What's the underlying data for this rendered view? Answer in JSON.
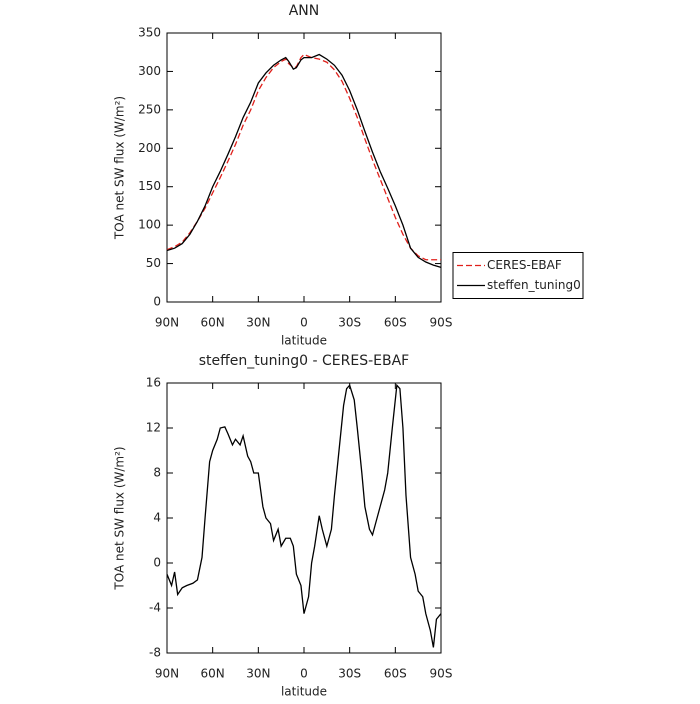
{
  "chart_data": [
    {
      "type": "line",
      "title": "ANN",
      "xlabel": "latitude",
      "ylabel": "TOA net SW flux (W/m²)",
      "x": [
        90,
        85,
        80,
        75,
        70,
        65,
        60,
        55,
        50,
        45,
        40,
        35,
        30,
        25,
        20,
        15,
        12,
        10,
        7,
        5,
        2,
        0,
        -5,
        -10,
        -15,
        -20,
        -25,
        -30,
        -35,
        -40,
        -45,
        -50,
        -55,
        -60,
        -65,
        -70,
        -75,
        -80,
        -85,
        -90
      ],
      "series": [
        {
          "name": "CERES-EBAF",
          "color": "#e0201b",
          "dashed": true,
          "values": [
            68,
            72,
            78,
            90,
            105,
            122,
            142,
            162,
            183,
            205,
            230,
            250,
            275,
            292,
            305,
            313,
            316,
            310,
            305,
            306,
            318,
            322,
            318,
            316,
            312,
            302,
            287,
            265,
            240,
            212,
            185,
            160,
            135,
            110,
            88,
            70,
            60,
            55,
            55,
            55
          ]
        },
        {
          "name": "steffen_tuning0",
          "color": "#000000",
          "dashed": false,
          "values": [
            67,
            70,
            76,
            88,
            105,
            125,
            150,
            170,
            192,
            215,
            240,
            260,
            285,
            298,
            308,
            315,
            318,
            313,
            303,
            305,
            315,
            318,
            318,
            322,
            316,
            308,
            295,
            275,
            250,
            222,
            195,
            170,
            148,
            125,
            100,
            70,
            58,
            52,
            48,
            45
          ]
        }
      ],
      "legend": "right",
      "xlim": [
        90,
        -90
      ],
      "xticks": [
        {
          "value": 90,
          "label": "90N"
        },
        {
          "value": 60,
          "label": "60N"
        },
        {
          "value": 30,
          "label": "30N"
        },
        0,
        {
          "value": -30,
          "label": "30S"
        },
        {
          "value": -60,
          "label": "60S"
        },
        {
          "value": -90,
          "label": "90S"
        }
      ],
      "ylim": [
        0,
        350
      ],
      "yticks": [
        0,
        50,
        100,
        150,
        200,
        250,
        300,
        350
      ]
    },
    {
      "type": "line",
      "title": "steffen_tuning0 - CERES-EBAF",
      "xlabel": "latitude",
      "ylabel": "TOA net SW flux (W/m²)",
      "x": [
        90,
        87,
        85,
        83,
        80,
        77,
        73,
        70,
        67,
        65,
        62,
        60,
        57,
        55,
        52,
        50,
        47,
        45,
        42,
        40,
        37,
        35,
        33,
        30,
        27,
        25,
        22,
        20,
        17,
        15,
        12,
        9,
        7,
        5,
        2,
        0,
        -3,
        -5,
        -7,
        -10,
        -12,
        -15,
        -18,
        -20,
        -23,
        -26,
        -28,
        -30,
        -33,
        -35,
        -38,
        -40,
        -43,
        -45,
        -47,
        -50,
        -53,
        -55,
        -58,
        -61,
        -63,
        -65,
        -67,
        -70,
        -73,
        -75,
        -78,
        -80,
        -83,
        -85,
        -87,
        -90
      ],
      "series": [
        {
          "color": "#000000",
          "dashed": false,
          "values": [
            -1,
            -2,
            -0.8,
            -2.8,
            -2.2,
            -2,
            -1.8,
            -1.5,
            0.5,
            4,
            9,
            10,
            11,
            12,
            12.1,
            11.5,
            10.5,
            11,
            10.5,
            11.3,
            9.5,
            9,
            8,
            8,
            5,
            4,
            3.5,
            2,
            3,
            1.5,
            2.2,
            2.2,
            1.5,
            -1,
            -2,
            -4.5,
            -3,
            0,
            1.5,
            4.2,
            3,
            1.5,
            3,
            6,
            10,
            14,
            15.5,
            15.8,
            14.5,
            12,
            8,
            5,
            3,
            2.5,
            3.5,
            5,
            6.5,
            8,
            12,
            15.8,
            15.5,
            12,
            6,
            0.5,
            -1,
            -2.5,
            -3,
            -4.5,
            -6,
            -7.5,
            -5,
            -4.5
          ]
        }
      ],
      "xlim": [
        90,
        -90
      ],
      "xticks": [
        {
          "value": 90,
          "label": "90N"
        },
        {
          "value": 60,
          "label": "60N"
        },
        {
          "value": 30,
          "label": "30N"
        },
        0,
        {
          "value": -30,
          "label": "30S"
        },
        {
          "value": -60,
          "label": "60S"
        },
        {
          "value": -90,
          "label": "90S"
        }
      ],
      "ylim": [
        -8,
        16
      ],
      "yticks": [
        -8,
        -4,
        0,
        4,
        8,
        12,
        16
      ]
    }
  ]
}
